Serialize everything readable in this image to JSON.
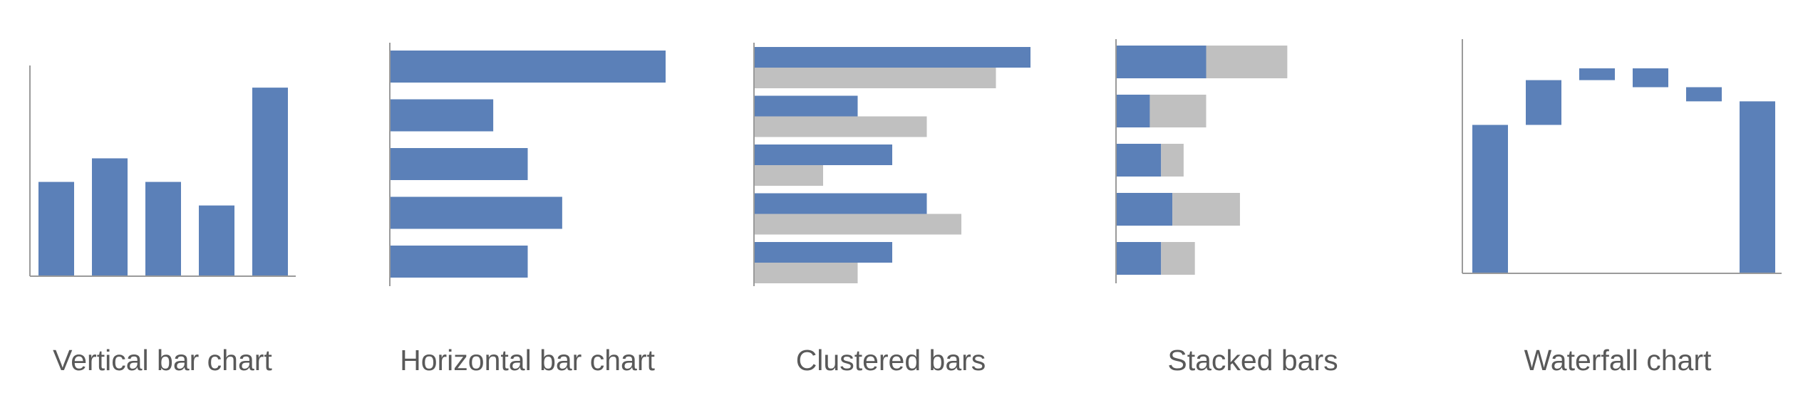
{
  "colors": {
    "primary": "#5b80b8",
    "secondary": "#c0c0c0",
    "axis": "#9a9a9a",
    "caption": "#595959"
  },
  "chart_data": [
    {
      "type": "bar",
      "orientation": "vertical",
      "title": "Vertical bar chart",
      "values": [
        4,
        5,
        4,
        3,
        8
      ],
      "ylim": [
        0,
        9
      ]
    },
    {
      "type": "bar",
      "orientation": "horizontal",
      "title": "Horizontal bar chart",
      "values": [
        8,
        3,
        4,
        5,
        4
      ],
      "xlim": [
        0,
        8
      ]
    },
    {
      "type": "bar",
      "orientation": "horizontal",
      "subtype": "clustered",
      "title": "Clustered bars",
      "xlim": [
        0,
        8
      ],
      "series": [
        {
          "values": [
            8,
            3,
            4,
            5,
            4
          ]
        },
        {
          "values": [
            7,
            5,
            2,
            6,
            3
          ]
        }
      ]
    },
    {
      "type": "bar",
      "orientation": "horizontal",
      "subtype": "stacked",
      "title": "Stacked bars",
      "xlim": [
        0,
        8
      ],
      "series": [
        {
          "values": [
            4,
            1.5,
            2,
            2.5,
            2
          ]
        },
        {
          "values": [
            3.6,
            2.5,
            1,
            3,
            1.5
          ]
        }
      ]
    },
    {
      "type": "bar",
      "subtype": "waterfall",
      "title": "Waterfall chart",
      "ylim": [
        0,
        10
      ],
      "steps": [
        {
          "kind": "total",
          "value": 6.3
        },
        {
          "kind": "delta",
          "value": 1.9
        },
        {
          "kind": "delta",
          "value": 0.5
        },
        {
          "kind": "delta",
          "value": -0.8
        },
        {
          "kind": "delta",
          "value": -0.6
        },
        {
          "kind": "total",
          "value": 7.3
        }
      ]
    }
  ]
}
